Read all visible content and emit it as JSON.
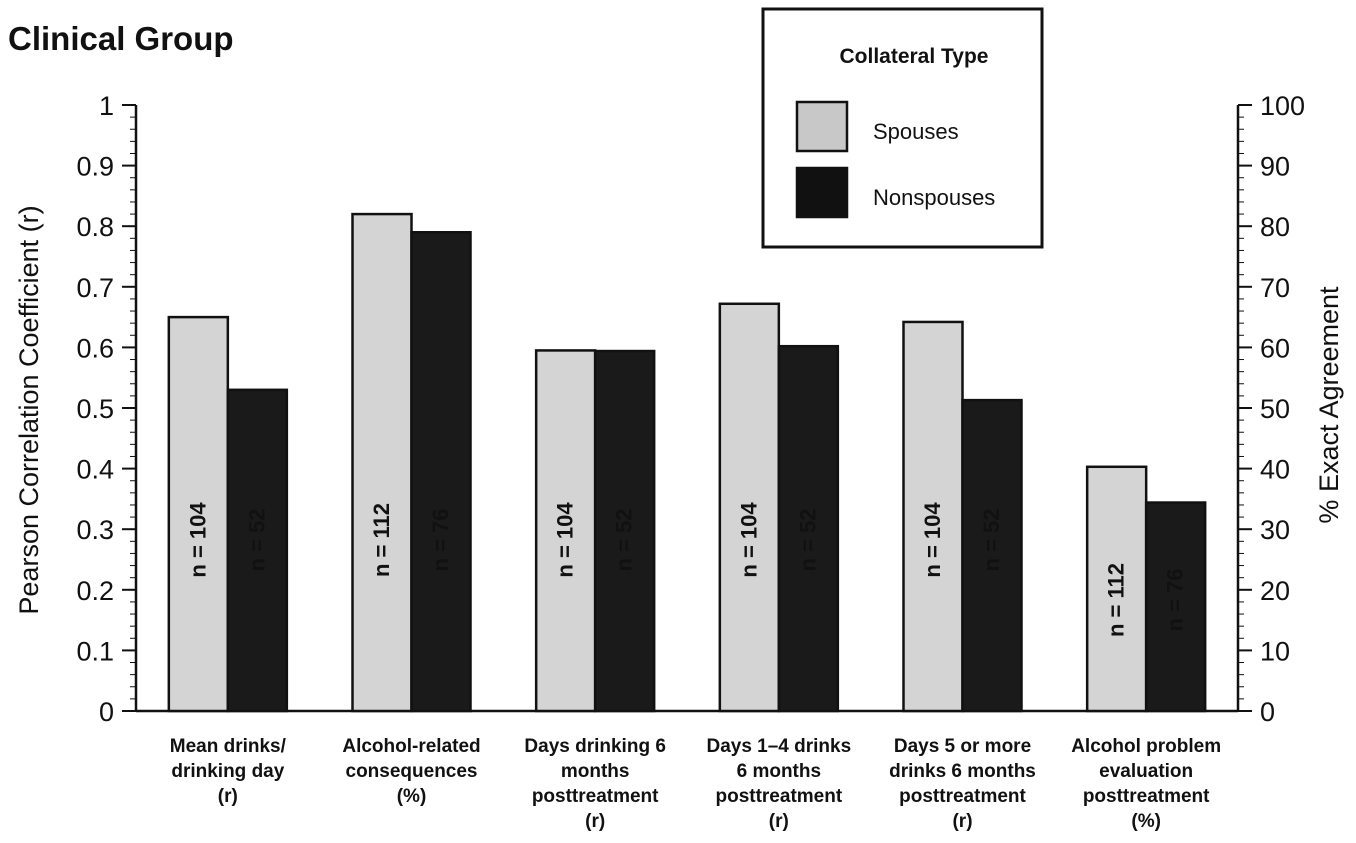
{
  "chart_data": {
    "type": "bar",
    "title": "Clinical Group",
    "ylabel": "Pearson Correlation Coefficient (r)",
    "ylabel_right": "% Exact Agreement",
    "ylim": [
      0,
      1
    ],
    "ylim_right": [
      0,
      100
    ],
    "yticks": [
      "0",
      "0.1",
      "0.2",
      "0.3",
      "0.4",
      "0.5",
      "0.6",
      "0.7",
      "0.8",
      "0.9",
      "1"
    ],
    "yticks_right": [
      "0",
      "10",
      "20",
      "30",
      "40",
      "50",
      "60",
      "70",
      "80",
      "90",
      "100"
    ],
    "categories": [
      [
        "Mean drinks/",
        "drinking day",
        "(r)"
      ],
      [
        "Alcohol-related",
        "consequences",
        "(%)"
      ],
      [
        "Days drinking 6",
        "months",
        "posttreatment",
        "(r)"
      ],
      [
        "Days 1–4 drinks",
        "6 months",
        "posttreatment",
        "(r)"
      ],
      [
        "Days 5 or more",
        "drinks 6 months",
        "posttreatment",
        "(r)"
      ],
      [
        "Alcohol problem",
        "evaluation",
        "posttreatment",
        "(%)"
      ]
    ],
    "series": [
      {
        "name": "Spouses",
        "color": "#d4d4d4",
        "values": [
          0.65,
          0.82,
          0.595,
          0.672,
          0.642,
          0.403
        ],
        "labels": [
          "n = 104",
          "n = 112",
          "n = 104",
          "n = 104",
          "n = 104",
          "n = 112"
        ]
      },
      {
        "name": "Nonspouses",
        "color": "#1a1a1a",
        "values": [
          0.53,
          0.79,
          0.594,
          0.602,
          0.513,
          0.344
        ],
        "labels": [
          "n = 52",
          "n = 76",
          "n = 52",
          "n = 52",
          "n = 52",
          "n = 76"
        ]
      }
    ],
    "legend": {
      "title": "Collateral Type",
      "position": "top-right"
    },
    "grid": false
  }
}
